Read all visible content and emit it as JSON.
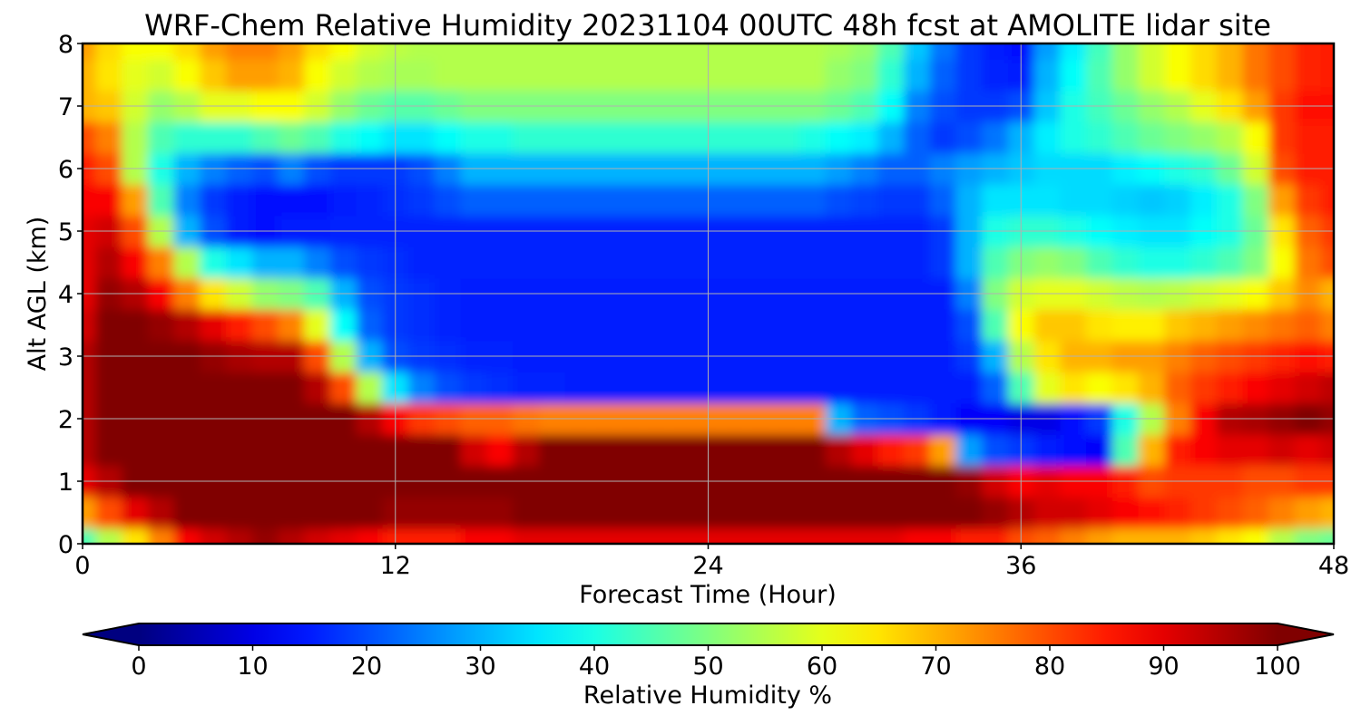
{
  "chart_data": {
    "type": "heatmap",
    "title": "WRF-Chem Relative Humidity 20231104 00UTC 48h fcst at AMOLITE lidar site",
    "xlabel": "Forecast Time (Hour)",
    "ylabel": "Alt AGL (km)",
    "xlim": [
      0,
      48
    ],
    "ylim": [
      0,
      8
    ],
    "x_ticks": [
      0,
      12,
      24,
      36,
      48
    ],
    "y_ticks": [
      0,
      1,
      2,
      3,
      4,
      5,
      6,
      7,
      8
    ],
    "grid": true,
    "colorbar": {
      "label": "Relative Humidity %",
      "min": 0,
      "max": 100,
      "ticks": [
        0,
        10,
        20,
        30,
        40,
        50,
        60,
        70,
        80,
        90,
        100
      ],
      "colormap": "jet",
      "extend": "both",
      "orientation": "horizontal"
    },
    "grid_x": [
      0,
      1,
      2,
      3,
      4,
      5,
      6,
      7,
      8,
      9,
      10,
      11,
      12,
      13,
      14,
      15,
      16,
      17,
      18,
      19,
      20,
      21,
      22,
      23,
      24,
      25,
      26,
      27,
      28,
      29,
      30,
      31,
      32,
      33,
      34,
      35,
      36,
      37,
      38,
      39,
      40,
      41,
      42,
      43,
      44,
      45,
      46,
      47,
      48
    ],
    "grid_y": [
      0,
      0.5,
      1,
      1.5,
      2,
      2.5,
      3,
      3.5,
      4,
      4.5,
      5,
      5.5,
      6,
      6.5,
      7,
      7.5,
      8
    ],
    "values": [
      [
        45,
        55,
        65,
        75,
        88,
        92,
        95,
        98,
        95,
        92,
        90,
        88,
        85,
        85,
        85,
        88,
        88,
        90,
        90,
        90,
        90,
        90,
        90,
        90,
        90,
        90,
        90,
        90,
        90,
        90,
        90,
        90,
        88,
        88,
        85,
        85,
        80,
        78,
        75,
        72,
        70,
        70,
        70,
        68,
        65,
        62,
        55,
        50,
        48
      ],
      [
        72,
        80,
        90,
        95,
        100,
        100,
        100,
        100,
        100,
        100,
        100,
        100,
        98,
        98,
        98,
        98,
        98,
        100,
        100,
        100,
        100,
        100,
        100,
        100,
        100,
        100,
        100,
        100,
        100,
        100,
        100,
        100,
        100,
        100,
        100,
        98,
        95,
        92,
        92,
        90,
        88,
        86,
        84,
        82,
        80,
        78,
        75,
        72,
        70
      ],
      [
        90,
        95,
        100,
        100,
        100,
        100,
        100,
        100,
        100,
        100,
        100,
        100,
        100,
        100,
        100,
        100,
        100,
        100,
        100,
        100,
        100,
        100,
        100,
        100,
        100,
        100,
        100,
        100,
        100,
        100,
        100,
        100,
        100,
        100,
        98,
        92,
        88,
        90,
        88,
        88,
        85,
        80,
        82,
        82,
        82,
        80,
        80,
        82,
        82
      ],
      [
        95,
        100,
        100,
        100,
        100,
        100,
        100,
        100,
        100,
        100,
        100,
        100,
        100,
        100,
        100,
        92,
        88,
        95,
        100,
        100,
        100,
        100,
        100,
        100,
        100,
        100,
        100,
        100,
        100,
        95,
        90,
        85,
        82,
        72,
        28,
        20,
        18,
        15,
        14,
        12,
        45,
        70,
        85,
        88,
        90,
        90,
        92,
        90,
        92
      ],
      [
        95,
        100,
        100,
        100,
        100,
        100,
        100,
        100,
        100,
        100,
        100,
        95,
        88,
        82,
        80,
        78,
        78,
        76,
        75,
        75,
        75,
        75,
        75,
        75,
        75,
        75,
        75,
        75,
        75,
        30,
        22,
        20,
        18,
        15,
        12,
        12,
        10,
        10,
        14,
        18,
        40,
        55,
        75,
        88,
        95,
        96,
        98,
        100,
        98
      ],
      [
        95,
        100,
        100,
        100,
        100,
        100,
        100,
        100,
        100,
        95,
        80,
        55,
        35,
        25,
        20,
        18,
        17,
        16,
        16,
        15,
        15,
        15,
        15,
        15,
        15,
        15,
        15,
        15,
        15,
        15,
        15,
        15,
        15,
        15,
        15,
        22,
        45,
        60,
        65,
        62,
        65,
        70,
        78,
        82,
        85,
        88,
        90,
        92,
        94
      ],
      [
        95,
        100,
        100,
        100,
        100,
        98,
        96,
        95,
        95,
        80,
        55,
        30,
        20,
        18,
        17,
        16,
        16,
        15,
        15,
        15,
        15,
        15,
        15,
        15,
        15,
        15,
        15,
        15,
        15,
        15,
        15,
        15,
        15,
        15,
        18,
        30,
        55,
        65,
        70,
        70,
        72,
        72,
        75,
        78,
        80,
        82,
        84,
        86,
        85
      ],
      [
        92,
        100,
        100,
        98,
        95,
        90,
        85,
        80,
        75,
        60,
        38,
        22,
        18,
        17,
        16,
        15,
        15,
        15,
        15,
        15,
        15,
        15,
        15,
        15,
        15,
        15,
        15,
        15,
        15,
        15,
        15,
        15,
        15,
        15,
        20,
        45,
        62,
        68,
        68,
        65,
        64,
        64,
        68,
        70,
        72,
        74,
        76,
        78,
        75
      ],
      [
        90,
        98,
        95,
        88,
        75,
        65,
        58,
        52,
        50,
        45,
        30,
        20,
        18,
        17,
        16,
        15,
        15,
        15,
        15,
        15,
        15,
        15,
        15,
        15,
        15,
        15,
        15,
        15,
        15,
        15,
        15,
        15,
        15,
        15,
        25,
        50,
        58,
        60,
        60,
        58,
        56,
        55,
        56,
        58,
        60,
        62,
        68,
        74,
        70
      ],
      [
        90,
        95,
        88,
        75,
        55,
        40,
        35,
        30,
        30,
        25,
        20,
        18,
        17,
        16,
        16,
        16,
        16,
        16,
        16,
        16,
        16,
        16,
        16,
        16,
        16,
        16,
        16,
        16,
        16,
        16,
        16,
        16,
        16,
        18,
        30,
        45,
        50,
        52,
        50,
        45,
        42,
        40,
        40,
        42,
        45,
        50,
        62,
        76,
        80
      ],
      [
        90,
        92,
        80,
        55,
        30,
        20,
        15,
        14,
        15,
        15,
        16,
        16,
        16,
        16,
        16,
        16,
        16,
        16,
        16,
        16,
        16,
        16,
        16,
        16,
        16,
        16,
        16,
        16,
        16,
        16,
        16,
        16,
        16,
        18,
        30,
        40,
        42,
        42,
        40,
        38,
        36,
        35,
        35,
        38,
        40,
        48,
        65,
        78,
        82
      ],
      [
        88,
        88,
        72,
        45,
        25,
        18,
        15,
        14,
        14,
        14,
        15,
        16,
        17,
        18,
        20,
        22,
        22,
        22,
        22,
        22,
        22,
        22,
        22,
        22,
        22,
        22,
        22,
        22,
        22,
        20,
        19,
        18,
        18,
        22,
        30,
        35,
        35,
        35,
        34,
        34,
        33,
        32,
        33,
        36,
        40,
        50,
        72,
        82,
        85
      ],
      [
        85,
        80,
        55,
        40,
        30,
        25,
        22,
        20,
        25,
        20,
        18,
        18,
        18,
        20,
        25,
        30,
        30,
        30,
        30,
        30,
        30,
        30,
        30,
        30,
        30,
        30,
        30,
        30,
        30,
        28,
        25,
        22,
        22,
        25,
        28,
        30,
        32,
        34,
        34,
        34,
        36,
        38,
        40,
        42,
        48,
        58,
        80,
        85,
        85
      ],
      [
        80,
        75,
        55,
        45,
        42,
        42,
        42,
        45,
        48,
        45,
        40,
        38,
        35,
        35,
        38,
        40,
        40,
        42,
        42,
        42,
        42,
        42,
        42,
        42,
        42,
        42,
        42,
        42,
        40,
        38,
        36,
        30,
        22,
        18,
        20,
        24,
        30,
        36,
        40,
        42,
        45,
        48,
        50,
        52,
        55,
        62,
        82,
        85,
        85
      ],
      [
        70,
        68,
        58,
        52,
        55,
        60,
        60,
        62,
        62,
        58,
        52,
        48,
        46,
        46,
        48,
        50,
        50,
        50,
        50,
        50,
        50,
        50,
        50,
        50,
        50,
        50,
        50,
        50,
        50,
        48,
        45,
        38,
        25,
        20,
        18,
        18,
        20,
        32,
        40,
        44,
        48,
        52,
        55,
        60,
        65,
        72,
        82,
        86,
        86
      ],
      [
        70,
        65,
        60,
        58,
        62,
        68,
        72,
        72,
        70,
        62,
        58,
        55,
        54,
        54,
        55,
        55,
        55,
        55,
        55,
        55,
        55,
        55,
        55,
        55,
        55,
        55,
        55,
        55,
        55,
        52,
        50,
        42,
        30,
        22,
        18,
        16,
        15,
        30,
        38,
        45,
        52,
        58,
        62,
        66,
        70,
        76,
        80,
        84,
        85
      ],
      [
        72,
        66,
        62,
        62,
        66,
        72,
        75,
        75,
        72,
        66,
        62,
        58,
        56,
        55,
        55,
        55,
        55,
        55,
        55,
        55,
        55,
        55,
        55,
        55,
        55,
        55,
        55,
        55,
        55,
        54,
        52,
        45,
        32,
        24,
        18,
        15,
        14,
        28,
        36,
        44,
        52,
        58,
        62,
        66,
        70,
        76,
        80,
        84,
        85
      ]
    ]
  }
}
